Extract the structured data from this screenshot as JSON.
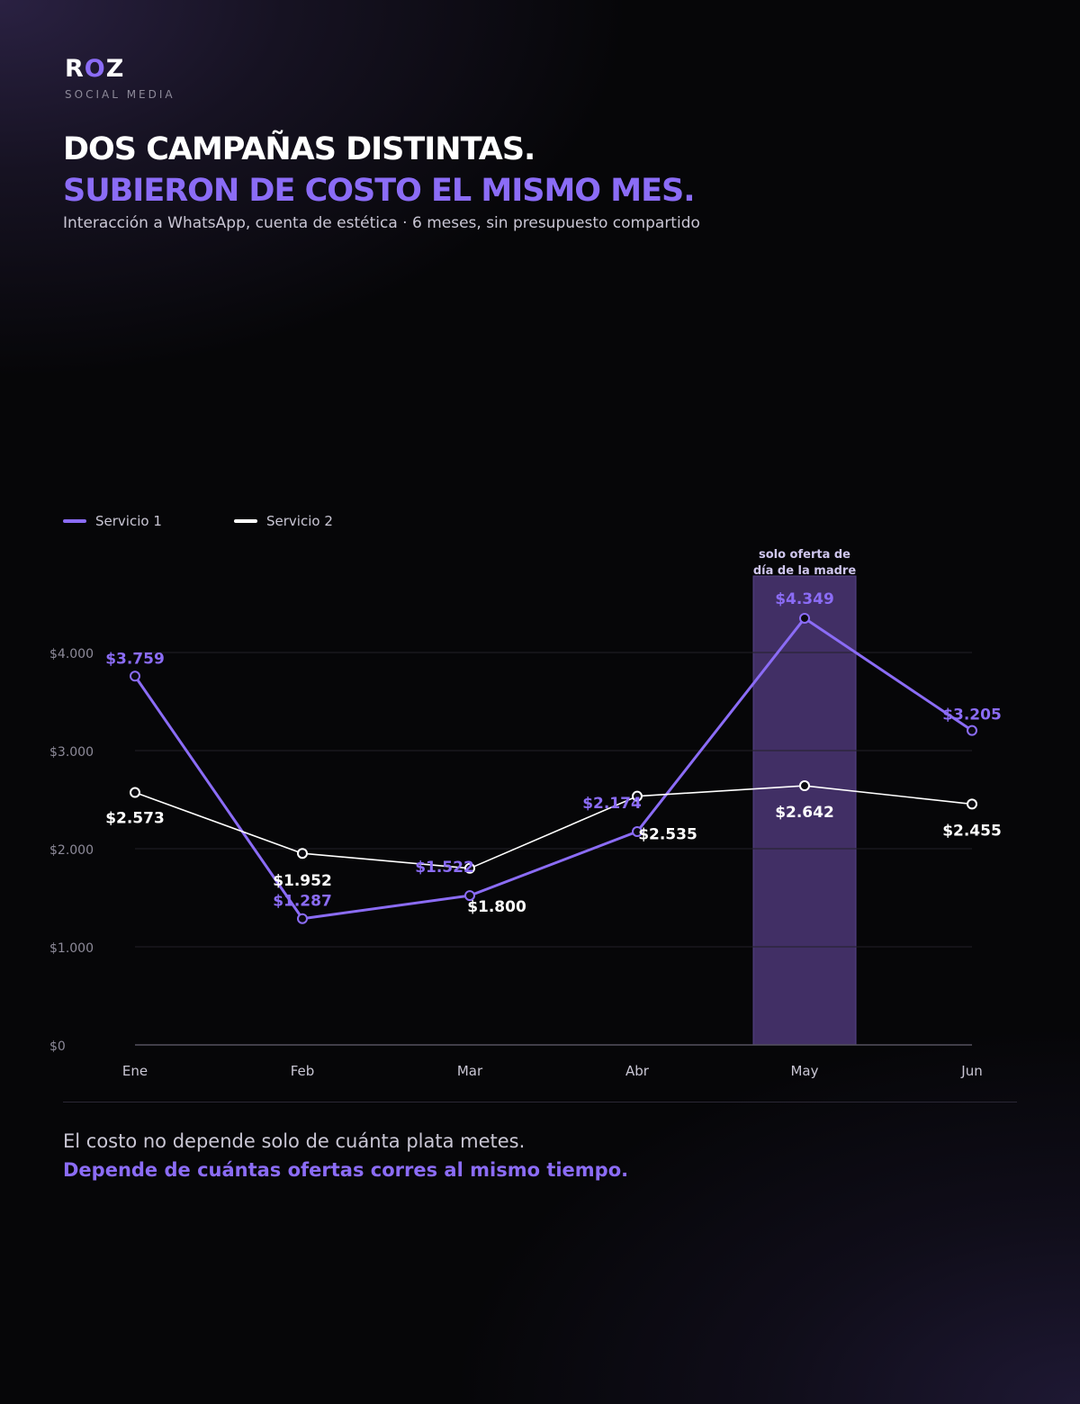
{
  "brand": {
    "logo_r": "R",
    "logo_o": "O",
    "logo_z": "Z",
    "tagline": "SOCIAL MEDIA"
  },
  "headline": {
    "line1": "DOS CAMPAÑAS DISTINTAS.",
    "line2": "SUBIERON DE COSTO EL MISMO MES."
  },
  "subtitle": "Interacción a WhatsApp, cuenta de estética · 6 meses, sin presupuesto compartido",
  "colors": {
    "accent": "#8b6cf6",
    "series2": "#ffffff",
    "highlight": "#45326b"
  },
  "chart_data": {
    "type": "line",
    "categories": [
      "Ene",
      "Feb",
      "Mar",
      "Abr",
      "May",
      "Jun"
    ],
    "series": [
      {
        "name": "Servicio 1",
        "color": "#8b6cf6",
        "values": [
          3759,
          1287,
          1522,
          2174,
          4349,
          3205
        ],
        "labels": [
          "$3.759",
          "$1.287",
          "$1.522",
          "$2.174",
          "$4.349",
          "$3.205"
        ]
      },
      {
        "name": "Servicio 2",
        "color": "#ffffff",
        "values": [
          2573,
          1952,
          1800,
          2535,
          2642,
          2455
        ],
        "labels": [
          "$2.573",
          "$1.952",
          "$1.800",
          "$2.535",
          "$2.642",
          "$2.455"
        ]
      }
    ],
    "yticks": [
      0,
      1000,
      2000,
      3000,
      4000
    ],
    "ytick_labels": [
      "$0",
      "$1.000",
      "$2.000",
      "$3.000",
      "$4.000"
    ],
    "ylim": [
      0,
      4000
    ],
    "grid": true,
    "legend": "top-left",
    "highlight": {
      "category": "May",
      "label_line1": "solo oferta de",
      "label_line2": "día de la madre"
    }
  },
  "footer": {
    "line1": "El costo no depende solo de cuánta plata metes.",
    "line2": "Depende de cuántas ofertas corres al mismo tiempo."
  }
}
